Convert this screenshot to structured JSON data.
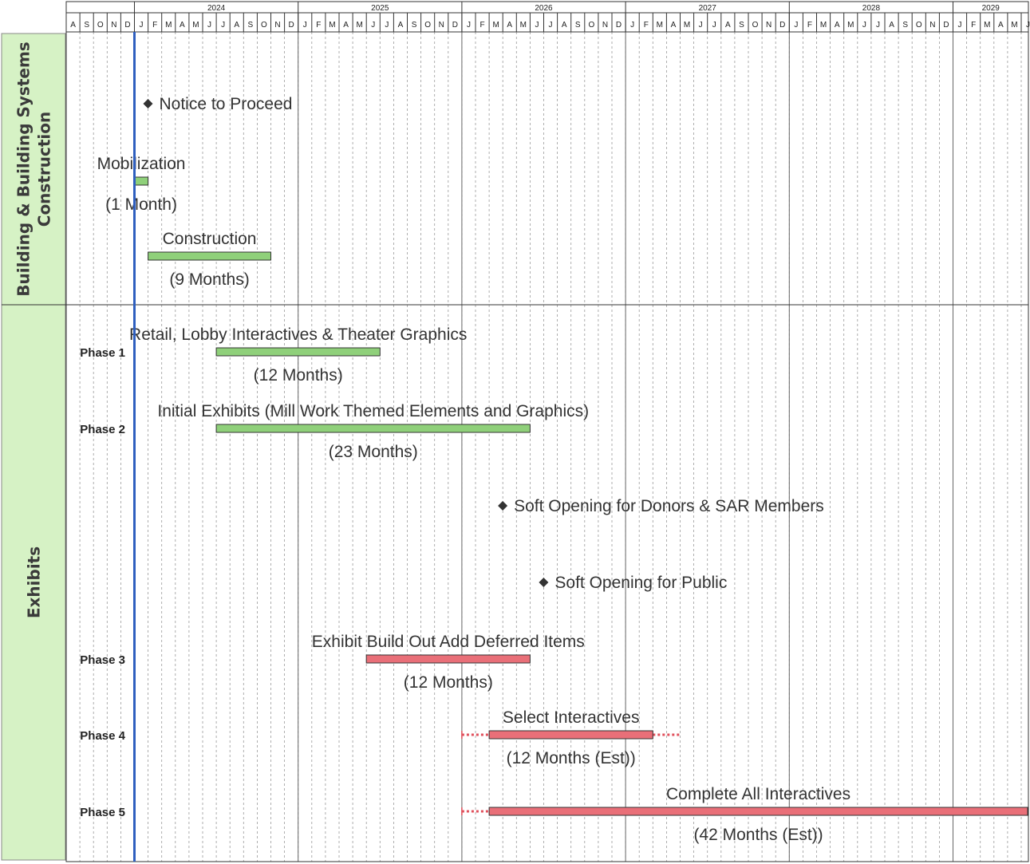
{
  "chart_data": {
    "type": "gantt",
    "timeline_start": "2023-08",
    "timeline_end": "2029-06",
    "today_marker": "2024-01",
    "years": [
      "2024",
      "2025",
      "2026",
      "2027",
      "2028",
      "2029"
    ],
    "month_letters": [
      "J",
      "F",
      "M",
      "A",
      "M",
      "J",
      "J",
      "A",
      "S",
      "O",
      "N",
      "D"
    ],
    "bar_colors": {
      "green": "#8fd07a",
      "red": "#e96f78",
      "diamond": "#333333",
      "today": "#2f5fbf",
      "section_bg": "#d6f2c5"
    },
    "sections": [
      {
        "id": "building",
        "lines": [
          "Building & Building Systems",
          "Construction"
        ]
      },
      {
        "id": "exhibits",
        "lines": [
          "Exhibits"
        ]
      }
    ],
    "tasks": [
      {
        "kind": "milestone",
        "name": "Notice to Proceed",
        "date": "2024-01",
        "section": "building",
        "phase": ""
      },
      {
        "kind": "bar",
        "name": "Mobilization",
        "duration_label": "(1 Month)",
        "start": "2024-01",
        "end": "2024-02",
        "color": "green",
        "section": "building",
        "phase": ""
      },
      {
        "kind": "bar",
        "name": "Construction",
        "duration_label": "(9 Months)",
        "start": "2024-02",
        "end": "2024-11",
        "color": "green",
        "section": "building",
        "phase": ""
      },
      {
        "kind": "bar",
        "name": "Retail, Lobby Interactives & Theater Graphics",
        "duration_label": "(12 Months)",
        "start": "2024-07",
        "end": "2025-07",
        "color": "green",
        "section": "exhibits",
        "phase": "Phase 1"
      },
      {
        "kind": "bar",
        "name": "Initial Exhibits (Mill Work Themed Elements and Graphics)",
        "duration_label": "(23 Months)",
        "start": "2024-07",
        "end": "2026-06",
        "color": "green",
        "section": "exhibits",
        "phase": "Phase 2"
      },
      {
        "kind": "milestone",
        "name": "Soft Opening for Donors & SAR Members",
        "date": "2026-03",
        "section": "exhibits",
        "phase": ""
      },
      {
        "kind": "milestone",
        "name": "Soft Opening for Public",
        "date": "2026-06",
        "section": "exhibits",
        "phase": ""
      },
      {
        "kind": "bar",
        "name": "Exhibit Build Out Add Deferred Items",
        "duration_label": "(12 Months)",
        "start": "2025-06",
        "end": "2026-06",
        "color": "red",
        "section": "exhibits",
        "phase": "Phase 3"
      },
      {
        "kind": "bar",
        "name": "Select Interactives",
        "duration_label": "(12 Months (Est))",
        "start": "2026-03",
        "end": "2027-03",
        "color": "red",
        "section": "exhibits",
        "phase": "Phase 4",
        "dotted_start": "2026-01",
        "dotted_end": "2027-05"
      },
      {
        "kind": "bar",
        "name": "Complete All Interactives",
        "duration_label": "(42 Months (Est))",
        "start": "2026-03",
        "end": "2029-09",
        "color": "red",
        "section": "exhibits",
        "phase": "Phase 5",
        "dotted_start": "2026-01",
        "dotted_end": "2029-06"
      }
    ]
  }
}
